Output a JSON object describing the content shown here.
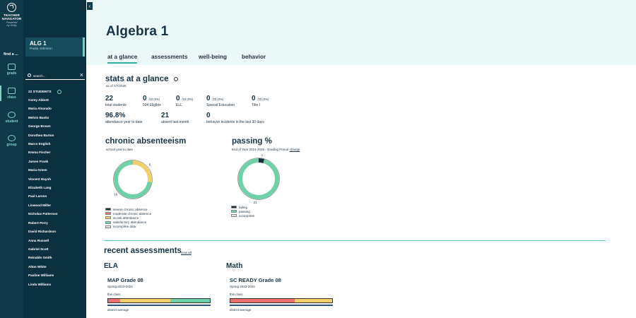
{
  "app": {
    "brand_line1": "TEACHER",
    "brand_line2": "NAVIGATOR",
    "brand_powered1": "Powered",
    "brand_powered2": "by Kelly",
    "find_label": "find a ...",
    "nav": [
      {
        "label": "grade",
        "icon": "mortarboard-icon"
      },
      {
        "label": "class",
        "icon": "class-icon"
      },
      {
        "label": "student",
        "icon": "student-icon"
      },
      {
        "label": "group",
        "icon": "group-icon"
      }
    ]
  },
  "sidebar": {
    "class_name": "ALG 1",
    "teacher": "Paula Johnson",
    "search_placeholder": "search...",
    "student_count_label": "22 STUDENTS",
    "students": [
      "Corey Abbott",
      "Maria Alvarado",
      "Melvin Banks",
      "George Brown",
      "Dorothea Burton",
      "Marco English",
      "Emma Fischer",
      "James Frank",
      "Maria Green",
      "Vincent Huynh",
      "Elizabeth Lang",
      "Paul Larson",
      "Linwood Miller",
      "Nicholas Patterson",
      "Robert Perry",
      "David Richardson",
      "Anna Russell",
      "Gabriel Scott",
      "Reinaldo Smith",
      "Alton White",
      "Pauline Williams",
      "Linda Williams"
    ]
  },
  "main": {
    "title": "Algebra 1",
    "tabs": [
      "at a glance",
      "assessments",
      "well-being",
      "behavior"
    ],
    "active_tab": 0,
    "stats": {
      "heading": "stats at a glance",
      "as_of": "as of 7/7/2025",
      "items": [
        {
          "value": "22",
          "small": "",
          "label": "total students"
        },
        {
          "value": "0",
          "small": "/22 (0%)",
          "label": "504 Eligible"
        },
        {
          "value": "0",
          "small": "/22 (0%)",
          "label": "ELL"
        },
        {
          "value": "0",
          "small": "/22 (0%)",
          "label": "Special Education"
        },
        {
          "value": "0",
          "small": "/22 (0%)",
          "label": "Title I"
        },
        {
          "value": "96.8%",
          "small": "",
          "label": "attendance year to date"
        },
        {
          "value": "21",
          "small": "",
          "label": "absent last month"
        },
        {
          "value": "0",
          "small": "",
          "label": "behavior incidents in the last 30 days"
        }
      ]
    },
    "absenteeism": {
      "heading": "chronic absenteeism",
      "sub": "school year to date",
      "legend": [
        {
          "label": "severe chronic absence",
          "color": "#1c2f3d"
        },
        {
          "label": "moderate chronic absence",
          "color": "#ef6f6c"
        },
        {
          "label": "at risk attendance",
          "color": "#f2cf6b"
        },
        {
          "label": "satisfactory attendance",
          "color": "#6fd1a8"
        },
        {
          "label": "incomplete data",
          "color": "#e6e6e6"
        }
      ]
    },
    "passing": {
      "heading": "passing %",
      "sub": "End of Year 2024-2025 - Grading Period",
      "change_label": "change",
      "legend": [
        {
          "label": "failing",
          "color": "#1c2f3d"
        },
        {
          "label": "passing",
          "color": "#6fd1a8"
        },
        {
          "label": "incomplete",
          "color": "#e6e6e6"
        }
      ]
    },
    "recent": {
      "heading": "recent assessments",
      "view_all": "view all",
      "groups": [
        {
          "subject": "ELA",
          "title": "MAP Grade 08",
          "term": "Spring 2023-2024",
          "this_class": "this class",
          "district": "district average",
          "segments": [
            {
              "color": "#ef6f6c",
              "pct": 12
            },
            {
              "color": "#f2cf6b",
              "pct": 49
            },
            {
              "color": "#6fd1a8",
              "pct": 39
            }
          ]
        },
        {
          "subject": "Math",
          "title": "SC READY Grade 08",
          "term": "Spring 2023-2024",
          "this_class": "this class",
          "district": "district average",
          "segments": [
            {
              "color": "#ef6f6c",
              "pct": 63
            },
            {
              "color": "#f2cf6b",
              "pct": 37
            }
          ]
        }
      ]
    }
  },
  "chart_data": [
    {
      "type": "pie",
      "categories": [
        "at risk attendance",
        "satisfactory attendance"
      ],
      "values": [
        6,
        16
      ],
      "labels": [
        "6",
        "16"
      ]
    },
    {
      "type": "pie",
      "categories": [
        "failing",
        "passing"
      ],
      "values": [
        1,
        21
      ],
      "labels": [
        "1",
        "21"
      ]
    }
  ]
}
